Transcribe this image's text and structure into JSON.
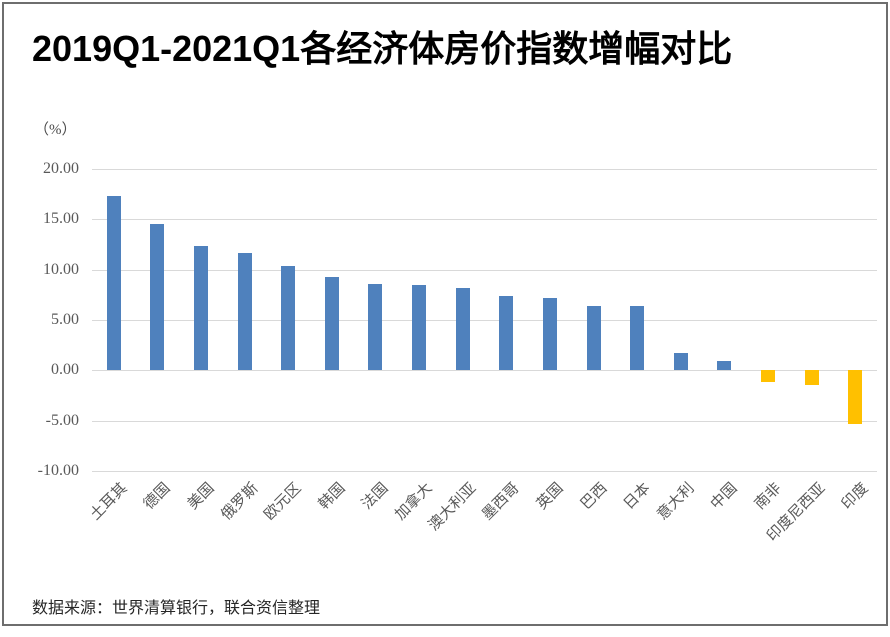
{
  "header": {
    "title": "2019Q1-2021Q1各经济体房价指数增幅对比"
  },
  "chart_data": {
    "type": "bar",
    "title": "2019Q1-2021Q1各经济体房价指数增幅对比",
    "unit_label": "（%）",
    "categories": [
      "土耳其",
      "德国",
      "美国",
      "俄罗斯",
      "欧元区",
      "韩国",
      "法国",
      "加拿大",
      "澳大利亚",
      "墨西哥",
      "英国",
      "巴西",
      "日本",
      "意大利",
      "中国",
      "南非",
      "印度尼西亚",
      "印度"
    ],
    "values": [
      17.3,
      14.5,
      12.4,
      11.7,
      10.4,
      9.3,
      8.6,
      8.5,
      8.2,
      7.4,
      7.2,
      6.4,
      6.4,
      1.7,
      0.9,
      -1.2,
      -1.5,
      -5.3
    ],
    "ylim": [
      -10,
      20
    ],
    "yticks": [
      "20.00",
      "15.00",
      "10.00",
      "5.00",
      "0.00",
      "-5.00",
      "-10.00"
    ],
    "grid": true,
    "legend": "none",
    "xlabel": "",
    "ylabel": "（%）",
    "bar_colors": {
      "positive": "#4f81bd",
      "negative": "#ffc000"
    }
  },
  "footer": {
    "source_note": "数据来源：世界清算银行，联合资信整理"
  },
  "colors": {
    "positive_bar": "#4f81bd",
    "negative_bar": "#ffc000",
    "gridline": "#d9d9d9",
    "axis_text": "#595959",
    "title_text": "#000000",
    "frame_border": "#6e6e6e"
  }
}
